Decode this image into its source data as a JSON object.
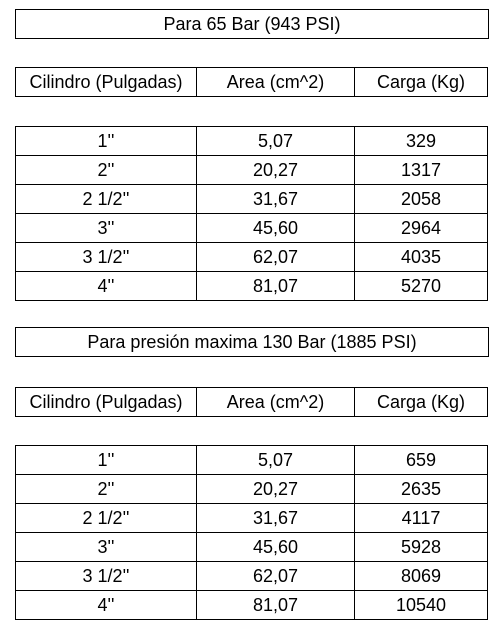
{
  "tables": [
    {
      "title": "Para 65 Bar (943 PSI)",
      "headers": [
        "Cilindro (Pulgadas)",
        "Area (cm^2)",
        "Carga (Kg)"
      ],
      "rows": [
        [
          "1''",
          "5,07",
          "329"
        ],
        [
          "2''",
          "20,27",
          "1317"
        ],
        [
          "2 1/2''",
          "31,67",
          "2058"
        ],
        [
          "3''",
          "45,60",
          "2964"
        ],
        [
          "3 1/2''",
          "62,07",
          "4035"
        ],
        [
          "4''",
          "81,07",
          "5270"
        ]
      ]
    },
    {
      "title": "Para presión maxima 130 Bar (1885 PSI)",
      "headers": [
        "Cilindro (Pulgadas)",
        "Area (cm^2)",
        "Carga (Kg)"
      ],
      "rows": [
        [
          "1''",
          "5,07",
          "659"
        ],
        [
          "2''",
          "20,27",
          "2635"
        ],
        [
          "2 1/2''",
          "31,67",
          "4117"
        ],
        [
          "3''",
          "45,60",
          "5928"
        ],
        [
          "3 1/2''",
          "62,07",
          "8069"
        ],
        [
          "4''",
          "81,07",
          "10540"
        ]
      ]
    }
  ]
}
